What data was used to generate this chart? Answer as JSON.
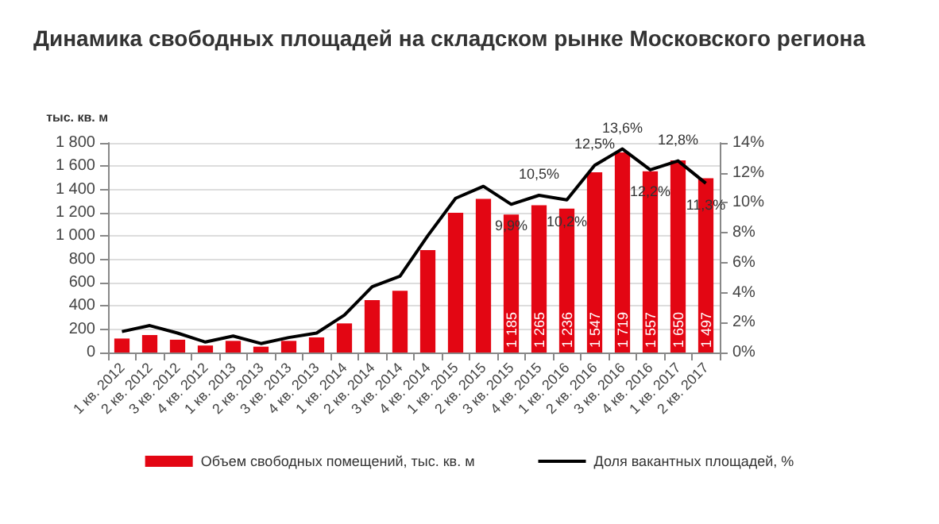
{
  "chart_data": {
    "type": "bar",
    "title": "Динамика свободных площадей на складском рынке Московского региона",
    "ylabel": "тыс. кв. м",
    "categories": [
      "1 кв. 2012",
      "2 кв. 2012",
      "3 кв. 2012",
      "4 кв. 2012",
      "1 кв. 2013",
      "2 кв. 2013",
      "3 кв. 2013",
      "4 кв. 2013",
      "1 кв. 2014",
      "2 кв. 2014",
      "3 кв. 2014",
      "4 кв. 2014",
      "1 кв. 2015",
      "2 кв. 2015",
      "3 кв. 2015",
      "4 кв. 2015",
      "1 кв. 2016",
      "2 кв. 2016",
      "3 кв. 2016",
      "4 кв. 2016",
      "1 кв. 2017",
      "2 кв. 2017"
    ],
    "series": [
      {
        "name": "Объем свободных помещений, тыс. кв. м",
        "color": "#e30613",
        "values": [
          120,
          150,
          110,
          60,
          100,
          50,
          100,
          130,
          250,
          450,
          530,
          880,
          1200,
          1320,
          1185,
          1265,
          1236,
          1547,
          1719,
          1557,
          1650,
          1497
        ],
        "value_labels": [
          null,
          null,
          null,
          null,
          null,
          null,
          null,
          null,
          null,
          null,
          null,
          null,
          null,
          null,
          "1 185",
          "1 265",
          "1 236",
          "1 547",
          "1 719",
          "1 557",
          "1 650",
          "1 497"
        ]
      },
      {
        "name": "Доля вакантных площадей, %",
        "type": "line",
        "axis": "y2",
        "color": "#000000",
        "marker": "none",
        "line_style": "solid",
        "values": [
          1.4,
          1.8,
          1.3,
          0.7,
          1.1,
          0.6,
          1.0,
          1.3,
          2.5,
          4.4,
          5.1,
          7.8,
          10.3,
          11.1,
          9.9,
          10.5,
          10.2,
          12.5,
          13.6,
          12.2,
          12.8,
          11.3
        ],
        "value_labels": [
          null,
          null,
          null,
          null,
          null,
          null,
          null,
          null,
          null,
          null,
          null,
          null,
          null,
          null,
          "9,9%",
          "10,5%",
          "10,2%",
          "12,5%",
          "13,6%",
          "12,2%",
          "12,8%",
          "11,3%"
        ]
      }
    ],
    "ylim": [
      0,
      1800
    ],
    "yticks": [
      0,
      200,
      400,
      600,
      800,
      {
        "value": 1000,
        "label": "1 000"
      },
      {
        "value": 1200,
        "label": "1 200"
      },
      {
        "value": 1400,
        "label": "1 400"
      },
      {
        "value": 1600,
        "label": "1 600"
      },
      {
        "value": 1800,
        "label": "1 800"
      }
    ],
    "y2lim": [
      0,
      14
    ],
    "y2ticks": [
      {
        "value": 0,
        "label": "0%"
      },
      {
        "value": 2,
        "label": "2%"
      },
      {
        "value": 4,
        "label": "4%"
      },
      {
        "value": 6,
        "label": "6%"
      },
      {
        "value": 8,
        "label": "8%"
      },
      {
        "value": 10,
        "label": "10%"
      },
      {
        "value": 12,
        "label": "12%"
      },
      {
        "value": 14,
        "label": "14%"
      }
    ],
    "grid": "y",
    "legend": "bottom"
  }
}
